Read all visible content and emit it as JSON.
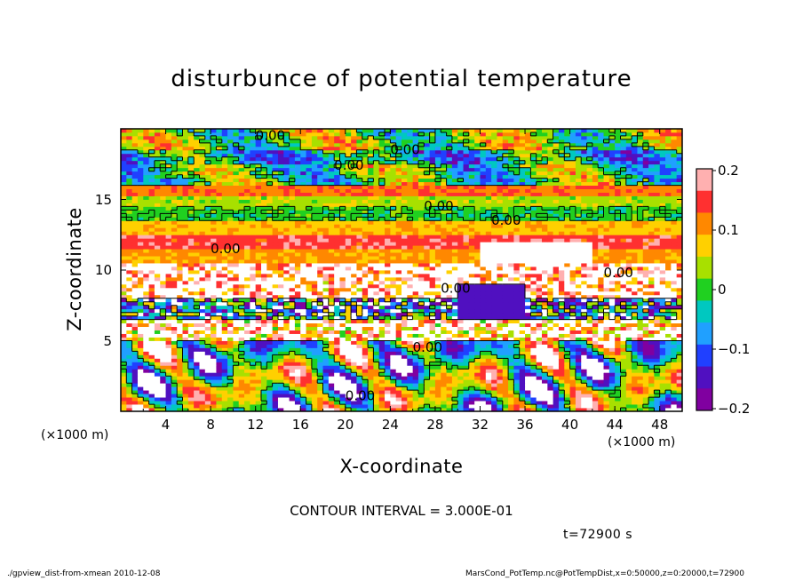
{
  "chart_data": {
    "type": "heatmap",
    "title": "disturbunce of potential temperature",
    "xlabel": "X-coordinate",
    "ylabel": "Z-coordinate",
    "x_unit_left": "(×1000 m)",
    "x_unit_right": "(×1000 m)",
    "xlim": [
      0,
      50
    ],
    "ylim": [
      0,
      20
    ],
    "x_ticks": [
      "4",
      "8",
      "12",
      "16",
      "20",
      "24",
      "28",
      "32",
      "36",
      "40",
      "44",
      "48"
    ],
    "y_ticks": [
      "5",
      "10",
      "15"
    ],
    "colorbar": {
      "range": [
        -0.2,
        0.2
      ],
      "labels": [
        "0.2",
        "0.1",
        "0",
        "−0.1",
        "−0.2"
      ],
      "colors": [
        "#ffb0b0",
        "#ff3030",
        "#ff8800",
        "#ffd000",
        "#a8e000",
        "#20d020",
        "#00c8c0",
        "#20a0ff",
        "#2040ff",
        "#5010c0",
        "#8000a0"
      ]
    },
    "contour_labels": [
      "0.00",
      "0.00",
      "0.00",
      "0.00",
      "0.00",
      "0.00",
      "0.00",
      "0.00",
      "0.00",
      "0.00"
    ],
    "layers_description_rows": [
      {
        "z_from": 18.5,
        "z_to": 20,
        "value": 0.02
      },
      {
        "z_from": 17.5,
        "z_to": 18.5,
        "value": -0.05
      },
      {
        "z_from": 16,
        "z_to": 17.5,
        "value": 0.0
      },
      {
        "z_from": 15.3,
        "z_to": 16,
        "value": 0.12
      },
      {
        "z_from": 14.6,
        "z_to": 15.3,
        "value": 0.04
      },
      {
        "z_from": 13.5,
        "z_to": 14.6,
        "value": 0.0
      },
      {
        "z_from": 12.5,
        "z_to": 13.5,
        "value": 0.08
      },
      {
        "z_from": 11.5,
        "z_to": 12.5,
        "value": 0.15
      },
      {
        "z_from": 10.5,
        "z_to": 11.5,
        "value": 0.1
      },
      {
        "z_from": 9.5,
        "z_to": 10.5,
        "value": 0.25
      },
      {
        "z_from": 8,
        "z_to": 9.5,
        "value": 0.22
      },
      {
        "z_from": 6.5,
        "z_to": 8,
        "value": -0.08
      },
      {
        "z_from": 5,
        "z_to": 6.5,
        "value": 0.18
      },
      {
        "z_from": 0,
        "z_to": 5,
        "value": 0.05
      }
    ]
  },
  "contour_interval": "CONTOUR INTERVAL = 3.000E-01",
  "timestamp": "t=72900 s",
  "footer_left": "./gpview_dist-from-xmean  2010-12-08",
  "footer_right": "MarsCond_PotTemp.nc@PotTempDist,x=0:50000,z=0:20000,t=72900"
}
